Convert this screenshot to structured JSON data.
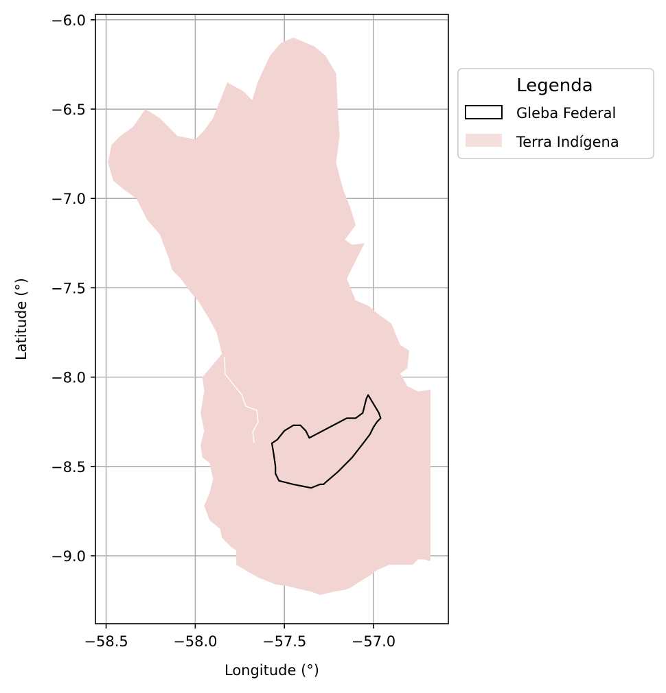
{
  "chart_data": {
    "type": "map",
    "xlabel": "Longitude (°)",
    "ylabel": "Latitude (°)",
    "xlim": [
      -58.56,
      -56.58
    ],
    "ylim": [
      -9.38,
      -5.97
    ],
    "x_ticks": [
      -58.5,
      -58.0,
      -57.5,
      -57.0
    ],
    "x_tick_labels": [
      "−58.5",
      "−58.0",
      "−57.5",
      "−57.0"
    ],
    "y_ticks": [
      -6.0,
      -6.5,
      -7.0,
      -7.5,
      -8.0,
      -8.5,
      -9.0
    ],
    "y_tick_labels": [
      "−6.0",
      "−6.5",
      "−7.0",
      "−7.5",
      "−8.0",
      "−8.5",
      "−9.0"
    ],
    "grid": true,
    "legend": {
      "title": "Legenda",
      "placement": "outside-top-right",
      "entries": [
        {
          "label": "Gleba Federal",
          "style": "outline",
          "color": "#000000"
        },
        {
          "label": "Terra Indígena",
          "style": "fill",
          "color": "#f2d5d3"
        }
      ]
    },
    "layers": [
      {
        "name": "Terra Indígena",
        "fill": "#f2d5d3",
        "coordinates": [
          [
            -57.33,
            -6.15
          ],
          [
            -57.27,
            -6.2
          ],
          [
            -57.21,
            -6.3
          ],
          [
            -57.2,
            -6.5
          ],
          [
            -57.19,
            -6.65
          ],
          [
            -57.21,
            -6.8
          ],
          [
            -57.17,
            -6.95
          ],
          [
            -57.13,
            -7.05
          ],
          [
            -57.1,
            -7.15
          ],
          [
            -57.16,
            -7.23
          ],
          [
            -57.12,
            -7.26
          ],
          [
            -57.05,
            -7.25
          ],
          [
            -57.1,
            -7.35
          ],
          [
            -57.15,
            -7.45
          ],
          [
            -57.1,
            -7.57
          ],
          [
            -57.03,
            -7.6
          ],
          [
            -56.97,
            -7.65
          ],
          [
            -56.9,
            -7.7
          ],
          [
            -56.85,
            -7.82
          ],
          [
            -56.8,
            -7.85
          ],
          [
            -56.81,
            -7.95
          ],
          [
            -56.85,
            -7.98
          ],
          [
            -56.81,
            -8.05
          ],
          [
            -56.75,
            -8.08
          ],
          [
            -56.68,
            -8.07
          ],
          [
            -56.68,
            -8.2
          ],
          [
            -56.68,
            -8.6
          ],
          [
            -56.68,
            -9.03
          ],
          [
            -56.72,
            -9.02
          ],
          [
            -56.75,
            -9.02
          ],
          [
            -56.78,
            -9.05
          ],
          [
            -56.85,
            -9.05
          ],
          [
            -56.91,
            -9.05
          ],
          [
            -56.98,
            -9.08
          ],
          [
            -57.02,
            -9.11
          ],
          [
            -57.07,
            -9.14
          ],
          [
            -57.13,
            -9.18
          ],
          [
            -57.16,
            -9.19
          ],
          [
            -57.22,
            -9.2
          ],
          [
            -57.3,
            -9.22
          ],
          [
            -57.35,
            -9.2
          ],
          [
            -57.4,
            -9.19
          ],
          [
            -57.48,
            -9.17
          ],
          [
            -57.55,
            -9.16
          ],
          [
            -57.6,
            -9.14
          ],
          [
            -57.65,
            -9.12
          ],
          [
            -57.72,
            -9.08
          ],
          [
            -57.77,
            -9.05
          ],
          [
            -57.77,
            -8.97
          ],
          [
            -57.8,
            -8.95
          ],
          [
            -57.85,
            -8.9
          ],
          [
            -57.86,
            -8.85
          ],
          [
            -57.92,
            -8.8
          ],
          [
            -57.95,
            -8.72
          ],
          [
            -57.92,
            -8.65
          ],
          [
            -57.9,
            -8.57
          ],
          [
            -57.92,
            -8.48
          ],
          [
            -57.96,
            -8.45
          ],
          [
            -57.97,
            -8.38
          ],
          [
            -57.95,
            -8.3
          ],
          [
            -57.97,
            -8.2
          ],
          [
            -57.95,
            -8.08
          ],
          [
            -57.96,
            -8.0
          ],
          [
            -57.9,
            -7.93
          ],
          [
            -57.85,
            -7.87
          ],
          [
            -57.88,
            -7.75
          ],
          [
            -57.93,
            -7.66
          ],
          [
            -57.98,
            -7.58
          ],
          [
            -58.03,
            -7.52
          ],
          [
            -58.08,
            -7.45
          ],
          [
            -58.13,
            -7.4
          ],
          [
            -58.15,
            -7.33
          ],
          [
            -58.2,
            -7.2
          ],
          [
            -58.27,
            -7.12
          ],
          [
            -58.33,
            -7.0
          ],
          [
            -58.4,
            -6.95
          ],
          [
            -58.46,
            -6.9
          ],
          [
            -58.49,
            -6.8
          ],
          [
            -58.47,
            -6.7
          ],
          [
            -58.42,
            -6.65
          ],
          [
            -58.35,
            -6.6
          ],
          [
            -58.28,
            -6.5
          ],
          [
            -58.2,
            -6.55
          ],
          [
            -58.1,
            -6.65
          ],
          [
            -58.0,
            -6.67
          ],
          [
            -57.95,
            -6.62
          ],
          [
            -57.9,
            -6.55
          ],
          [
            -57.86,
            -6.45
          ],
          [
            -57.82,
            -6.35
          ],
          [
            -57.73,
            -6.4
          ],
          [
            -57.68,
            -6.45
          ],
          [
            -57.65,
            -6.35
          ],
          [
            -57.58,
            -6.2
          ],
          [
            -57.52,
            -6.13
          ],
          [
            -57.45,
            -6.1
          ],
          [
            -57.4,
            -6.12
          ]
        ]
      },
      {
        "name": "Gleba Federal",
        "stroke": "#000000",
        "coordinates": [
          [
            -57.36,
            -8.34
          ],
          [
            -57.15,
            -8.23
          ],
          [
            -57.1,
            -8.23
          ],
          [
            -57.06,
            -8.2
          ],
          [
            -57.04,
            -8.12
          ],
          [
            -57.03,
            -8.1
          ],
          [
            -57.0,
            -8.15
          ],
          [
            -56.97,
            -8.2
          ],
          [
            -56.96,
            -8.23
          ],
          [
            -56.98,
            -8.25
          ],
          [
            -57.0,
            -8.28
          ],
          [
            -57.02,
            -8.32
          ],
          [
            -57.05,
            -8.36
          ],
          [
            -57.12,
            -8.45
          ],
          [
            -57.2,
            -8.53
          ],
          [
            -57.27,
            -8.59
          ],
          [
            -57.28,
            -8.6
          ],
          [
            -57.3,
            -8.6
          ],
          [
            -57.35,
            -8.62
          ],
          [
            -57.4,
            -8.61
          ],
          [
            -57.45,
            -8.6
          ],
          [
            -57.49,
            -8.59
          ],
          [
            -57.53,
            -8.58
          ],
          [
            -57.55,
            -8.54
          ],
          [
            -57.55,
            -8.5
          ],
          [
            -57.56,
            -8.43
          ],
          [
            -57.57,
            -8.37
          ],
          [
            -57.54,
            -8.35
          ],
          [
            -57.5,
            -8.3
          ],
          [
            -57.45,
            -8.27
          ],
          [
            -57.41,
            -8.27
          ],
          [
            -57.38,
            -8.3
          ]
        ]
      }
    ]
  }
}
